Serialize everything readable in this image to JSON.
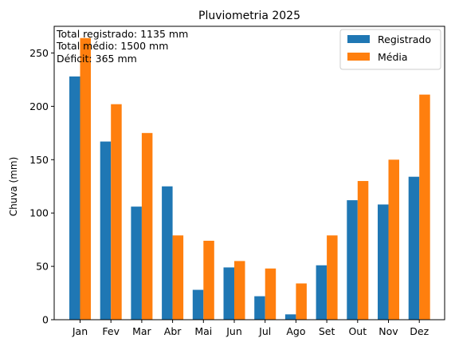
{
  "chart_data": {
    "type": "bar",
    "title": "Pluviometria 2025",
    "xlabel": "",
    "ylabel": "Chuva (mm)",
    "ylim": [
      0,
      275
    ],
    "yticks": [
      0,
      50,
      100,
      150,
      200,
      250
    ],
    "categories": [
      "Jan",
      "Fev",
      "Mar",
      "Abr",
      "Mai",
      "Jun",
      "Jul",
      "Ago",
      "Set",
      "Out",
      "Nov",
      "Dez"
    ],
    "series": [
      {
        "name": "Registrado",
        "color": "#1f77b4",
        "values": [
          228,
          167,
          106,
          125,
          28,
          49,
          22,
          5,
          51,
          112,
          108,
          134
        ]
      },
      {
        "name": "Média",
        "color": "#ff7f0e",
        "values": [
          264,
          202,
          175,
          79,
          74,
          55,
          48,
          34,
          79,
          130,
          150,
          211
        ]
      }
    ],
    "legend_position": "top-right",
    "grid": false,
    "annotations": [
      "Total registrado: 1135 mm",
      "Total médio: 1500 mm",
      "Déficit: 365 mm"
    ]
  }
}
